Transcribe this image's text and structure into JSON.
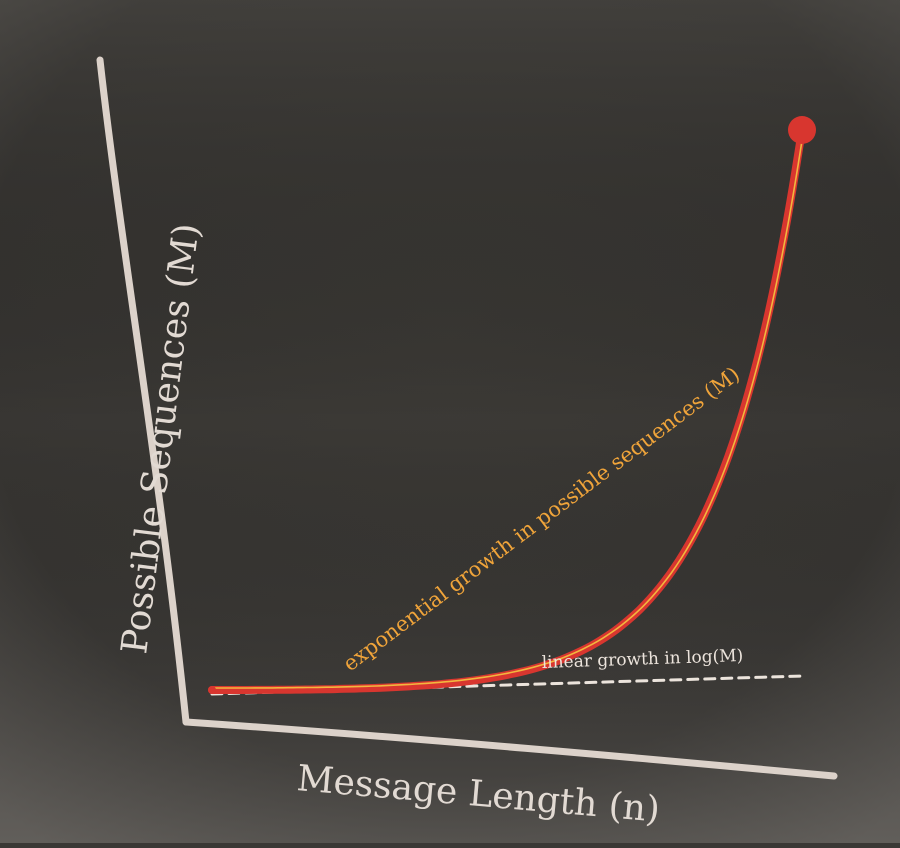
{
  "chart_data": {
    "type": "line",
    "title": "",
    "xlabel": "Message Length (n)",
    "ylabel": "Possible Sequences (M)",
    "grid": false,
    "ticks": false,
    "annotations": [
      {
        "id": "exp",
        "text": "exponential growth in possible sequences (M)"
      },
      {
        "id": "lin",
        "text": "linear growth in log(M)"
      }
    ],
    "series": [
      {
        "kind": "exponential",
        "style": "solid",
        "color": "#d8362f",
        "highlight_color": "#f2b73e",
        "x": [
          0,
          1,
          2,
          3,
          4,
          5,
          6,
          7,
          8,
          9,
          10
        ],
        "y": [
          1,
          2,
          4,
          8,
          16,
          32,
          64,
          128,
          256,
          512,
          1024
        ]
      },
      {
        "kind": "linear",
        "style": "dashed",
        "color": "#ece4dc",
        "x": [
          0,
          1,
          2,
          3,
          4,
          5,
          6,
          7,
          8,
          9,
          10
        ],
        "y": [
          0,
          1,
          2,
          3,
          4,
          5,
          6,
          7,
          8,
          9,
          10
        ]
      }
    ],
    "colors": {
      "axis": "#dcd2ca",
      "label": "#e2dad3",
      "annotation_exp": "#f0a43a",
      "annotation_lin": "#ece4dc"
    }
  }
}
